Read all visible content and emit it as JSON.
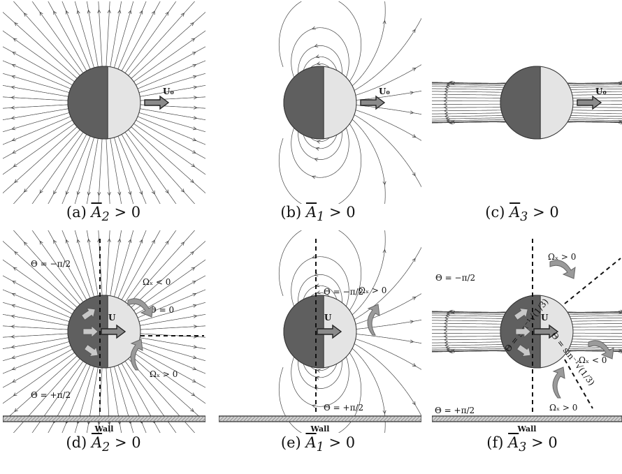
{
  "panels": [
    {
      "id": "a",
      "caption_letter": "(a)",
      "coef": "A",
      "sub": "2",
      "relation": "> 0",
      "velocity_label": "U₀",
      "has_wall": false,
      "mode": "source"
    },
    {
      "id": "b",
      "caption_letter": "(b)",
      "coef": "A",
      "sub": "1",
      "relation": "> 0",
      "velocity_label": "U₀",
      "has_wall": false,
      "mode": "dipole"
    },
    {
      "id": "c",
      "caption_letter": "(c)",
      "coef": "A",
      "sub": "3",
      "relation": "> 0",
      "velocity_label": "U₀",
      "has_wall": false,
      "mode": "quadrupole"
    },
    {
      "id": "d",
      "caption_letter": "(d)",
      "coef": "A",
      "sub": "2",
      "relation": "> 0",
      "velocity_label": "U",
      "has_wall": true,
      "mode": "source",
      "annotations": [
        "Θ = −π/2",
        "Θ = 0",
        "Θ = +π/2",
        "Ωₓ < 0",
        "Ωₓ > 0"
      ]
    },
    {
      "id": "e",
      "caption_letter": "(e)",
      "coef": "A",
      "sub": "1",
      "relation": "> 0",
      "velocity_label": "U",
      "has_wall": true,
      "mode": "dipole",
      "annotations": [
        "Θ = −π/2",
        "Θ = +π/2",
        "Ωₓ > 0"
      ]
    },
    {
      "id": "f",
      "caption_letter": "(f)",
      "coef": "A",
      "sub": "3",
      "relation": "> 0",
      "velocity_label": "U",
      "has_wall": true,
      "mode": "quadrupole",
      "annotations": [
        "Θ = −π/2",
        "Θ = +π/2",
        "Θ = sin⁻¹√(1/3)",
        "Θ = sin⁻¹√(1/3)",
        "Ωₓ > 0",
        "Ωₓ < 0",
        "Ωₓ > 0"
      ]
    }
  ],
  "wall_label": "Wall",
  "colors": {
    "dark_half": "#5f5f5f",
    "light_half": "#e4e4e4",
    "arrow_fill": "#8a8a8a",
    "curved_arrow": "#9a9a9a"
  }
}
